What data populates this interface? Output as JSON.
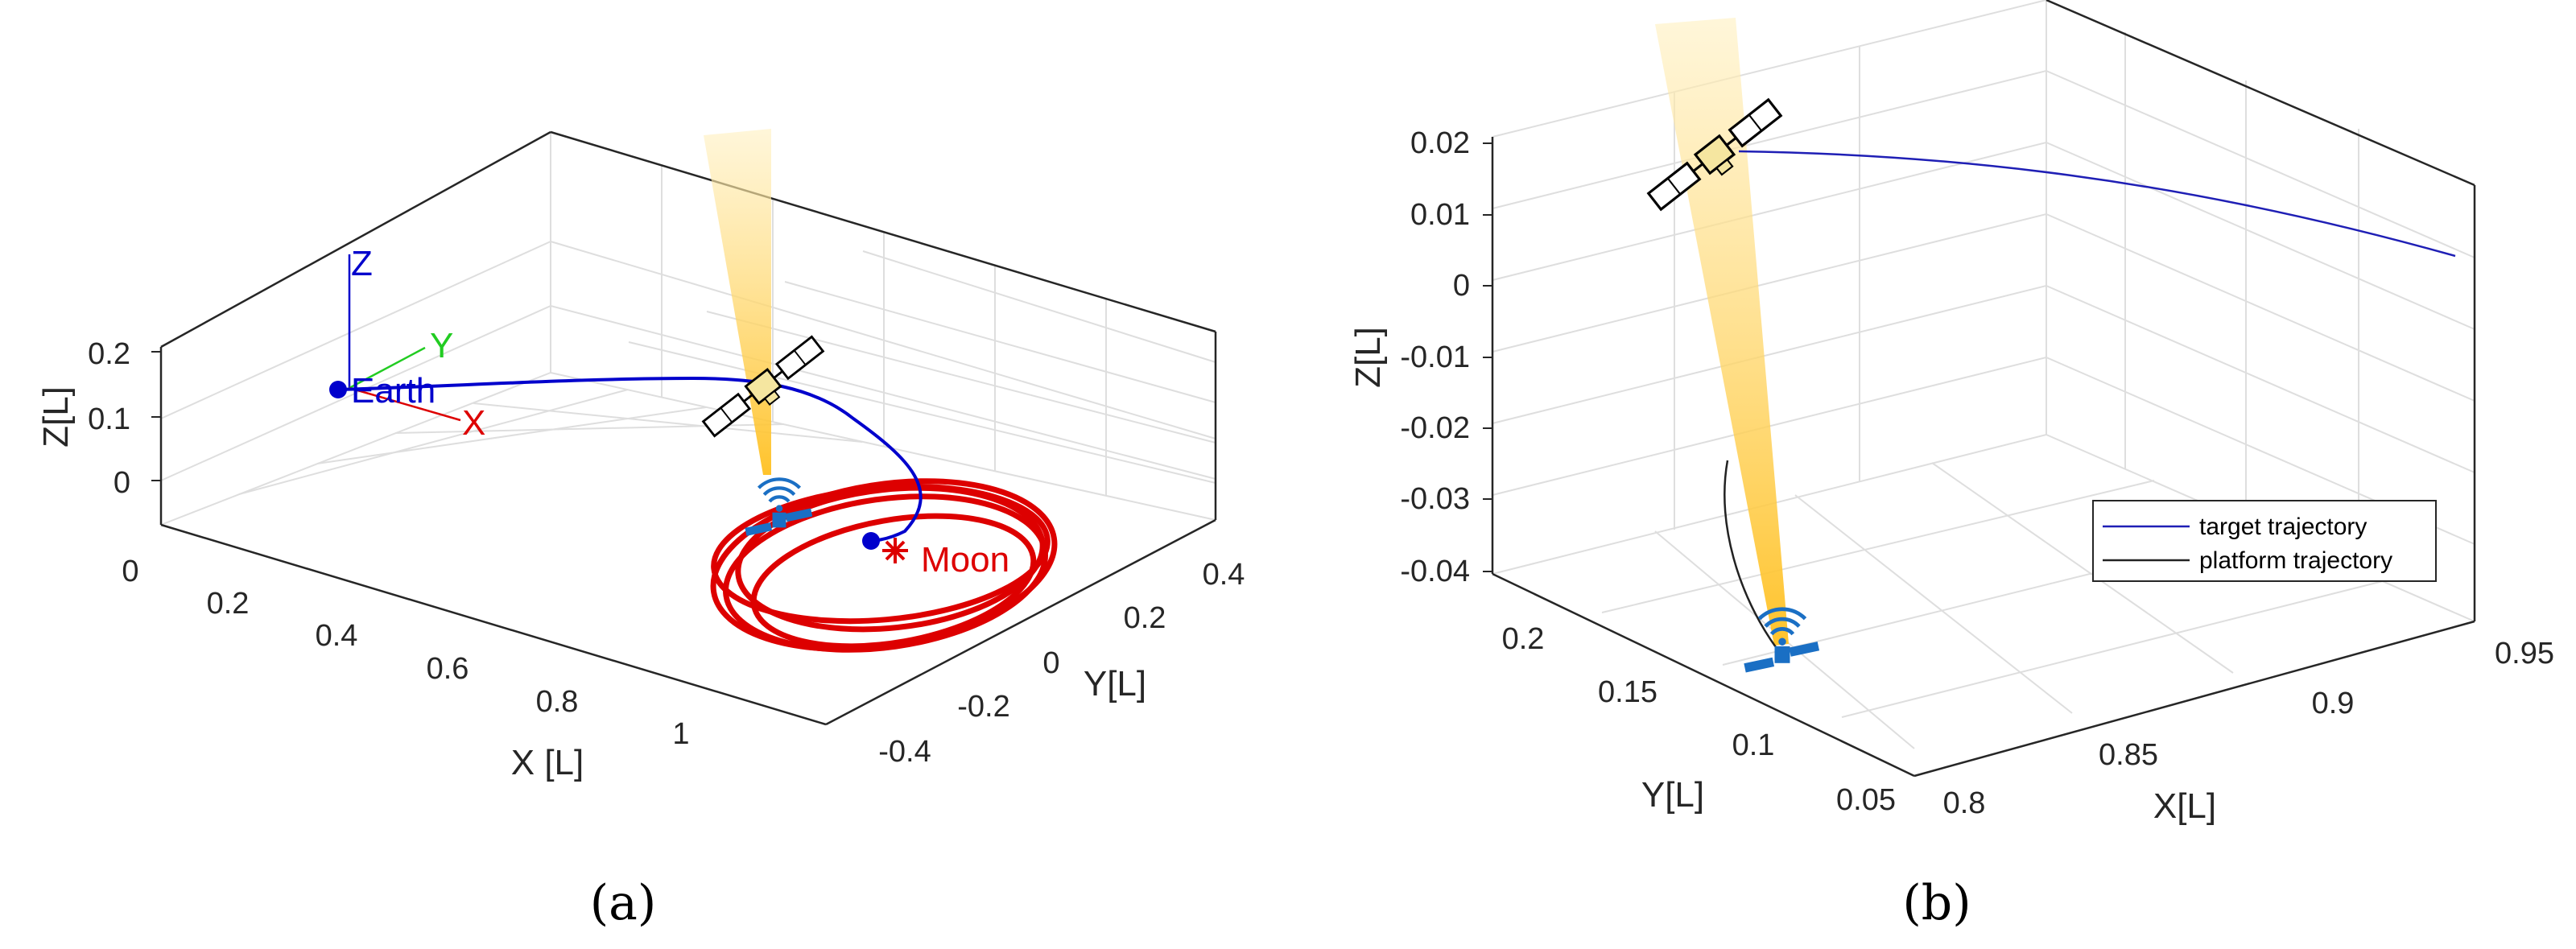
{
  "chart_data": [
    {
      "type": "line",
      "panel": "(a)",
      "xlabel": "X [L]",
      "ylabel": "Y[L]",
      "zlabel": "Z[L]",
      "x_ticks": [
        "0",
        "0.2",
        "0.4",
        "0.6",
        "0.8",
        "1"
      ],
      "y_ticks": [
        "-0.4",
        "-0.2",
        "0",
        "0.2",
        "0.4"
      ],
      "z_ticks": [
        "0",
        "0.1",
        "0.2"
      ],
      "xlim": [
        0,
        1.2
      ],
      "ylim": [
        -0.5,
        0.5
      ],
      "zlim": [
        -0.05,
        0.25
      ],
      "grid": true,
      "frame_labels": {
        "x": "X",
        "y": "Y",
        "z": "Z"
      },
      "annotations": {
        "earth": "Earth",
        "moon": "Moon"
      },
      "series": [
        {
          "role": "transfer",
          "color": "#0000cc",
          "x": [
            0,
            0.3,
            0.55,
            0.7,
            0.8,
            0.9
          ],
          "y": [
            0,
            0.1,
            0.15,
            0.05,
            -0.05,
            -0.02
          ],
          "z": [
            0.15,
            0.16,
            0.17,
            0.12,
            0.05,
            0
          ]
        },
        {
          "role": "halo",
          "color": "#dd0000",
          "x": [
            0.95,
            1.1,
            1.05,
            0.9
          ],
          "y": [
            -0.05,
            0.05,
            0.1,
            -0.05
          ],
          "z": [
            0,
            0.02,
            0,
            -0.02
          ]
        }
      ],
      "colors": {
        "transfer": "#0000cc",
        "halo": "#dd0000",
        "earth": "#0000cc",
        "moon": "#dd0000",
        "frame_x": "#dd0000",
        "frame_y": "#22cc22",
        "frame_z": "#0000cc",
        "beam": "#ffc020"
      }
    },
    {
      "type": "line",
      "panel": "(b)",
      "xlabel": "X[L]",
      "ylabel": "Y[L]",
      "zlabel": "Z[L]",
      "x_ticks": [
        "0.8",
        "0.85",
        "0.9",
        "0.95"
      ],
      "y_ticks": [
        "0.05",
        "0.1",
        "0.15",
        "0.2"
      ],
      "z_ticks": [
        "-0.04",
        "-0.03",
        "-0.02",
        "-0.01",
        "0",
        "0.01",
        "0.02"
      ],
      "xlim": [
        0.8,
        0.95
      ],
      "ylim": [
        0.05,
        0.2
      ],
      "zlim": [
        -0.04,
        0.02
      ],
      "grid": true,
      "legend": {
        "placement": "bottom-right",
        "entries": [
          "target trajectory",
          "platform trajectory"
        ]
      },
      "series": [
        {
          "name": "target trajectory",
          "color": "#1f1fb5",
          "x": [
            0.8,
            0.85,
            0.9,
            0.95
          ],
          "y": [
            0.2,
            0.2,
            0.19,
            0.17
          ],
          "z": [
            0.02,
            0.019,
            0.016,
            0.012
          ]
        },
        {
          "name": "platform trajectory",
          "color": "#222222",
          "x": [
            0.8,
            0.82
          ],
          "y": [
            0.15,
            0.1
          ],
          "z": [
            -0.029,
            -0.04
          ]
        }
      ],
      "colors": {
        "beam": "#ffc020"
      }
    }
  ],
  "captions": [
    "(a)",
    "(b)"
  ]
}
